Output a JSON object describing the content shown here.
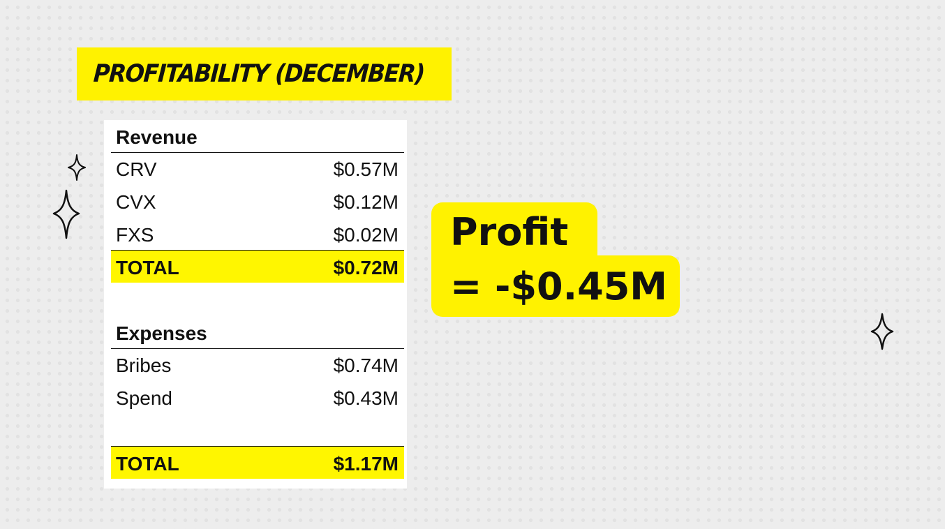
{
  "title": "PROFITABILITY (DECEMBER)",
  "revenue": {
    "header": "Revenue",
    "items": [
      {
        "label": "CRV",
        "value": "$0.57M"
      },
      {
        "label": "CVX",
        "value": "$0.12M"
      },
      {
        "label": "FXS",
        "value": "$0.02M"
      }
    ],
    "total_label": "TOTAL",
    "total_value": "$0.72M"
  },
  "expenses": {
    "header": "Expenses",
    "items": [
      {
        "label": "Bribes",
        "value": "$0.74M"
      },
      {
        "label": "Spend",
        "value": "$0.43M"
      }
    ],
    "total_label": "TOTAL",
    "total_value": "$1.17M"
  },
  "profit": {
    "label": "Profit",
    "value": "= -$0.45M"
  },
  "colors": {
    "highlight": "#fff200",
    "background": "#ededed",
    "text": "#111111"
  },
  "icons": [
    "sparkle-icon",
    "sparkle-icon",
    "sparkle-icon"
  ]
}
